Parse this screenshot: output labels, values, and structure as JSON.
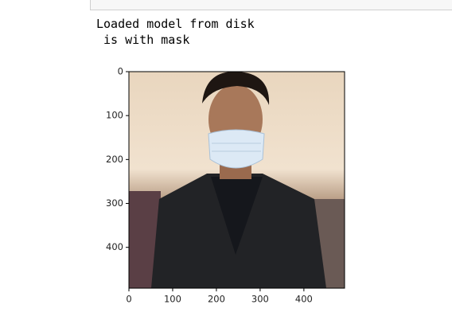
{
  "output": {
    "lines": [
      "Loaded model from disk",
      " is with mask"
    ]
  },
  "chart_data": {
    "type": "image",
    "xlim": [
      0,
      493
    ],
    "ylim": [
      493,
      0
    ],
    "xticks": [
      0,
      100,
      200,
      300,
      400
    ],
    "yticks": [
      0,
      100,
      200,
      300,
      400
    ]
  }
}
